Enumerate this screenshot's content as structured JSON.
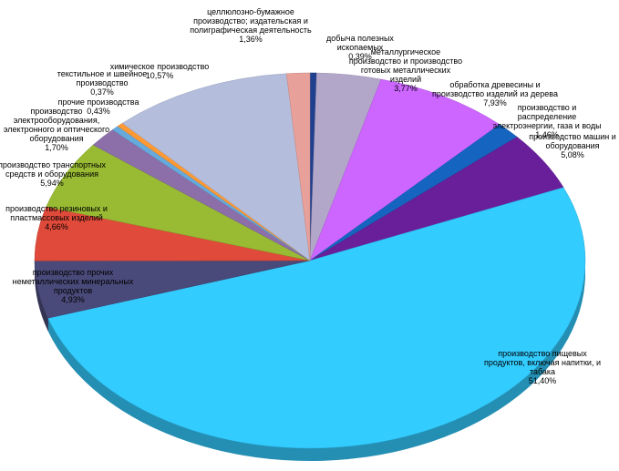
{
  "chart_data": {
    "type": "pie",
    "categories": [
      "добыча полезных ископаемых",
      "металлургическое производство и производство готовых металлических изделий",
      "обработка древесины и производство изделий из дерева",
      "производство и распределение электроэнергии, газа и воды",
      "производство машин и оборудования",
      "производство пищевых продуктов, включая напитки, и табака",
      "производство прочих неметаллических минеральных продуктов",
      "производство резиновых и пластмассовых изделий",
      "производство транспортных средств и оборудования",
      "производство электрооборудования, электронного и оптического оборудования",
      "прочие производства",
      "текстильное и швейное производство",
      "химическое производство",
      "целлюлозно-бумажное производство; издательская и полиграфическая деятельность"
    ],
    "values": [
      0.39,
      3.77,
      7.93,
      1.46,
      5.08,
      51.4,
      4.93,
      4.66,
      5.94,
      1.7,
      0.43,
      0.37,
      10.57,
      1.36
    ],
    "value_labels": [
      "0,39%",
      "3,77%",
      "7,93%",
      "1,46%",
      "5,08%",
      "51,40%",
      "4,93%",
      "4,66%",
      "5,94%",
      "1,70%",
      "0,43%",
      "0,37%",
      "10,57%",
      "1,36%"
    ],
    "colors": [
      "#1f3f8f",
      "#b3a7c9",
      "#cc66ff",
      "#1565c0",
      "#6a1f9a",
      "#33ccff",
      "#4a4a7a",
      "#e04a3a",
      "#99bb33",
      "#8c6fa8",
      "#66aadd",
      "#ff9933",
      "#b4bedc",
      "#e8a09a"
    ]
  }
}
